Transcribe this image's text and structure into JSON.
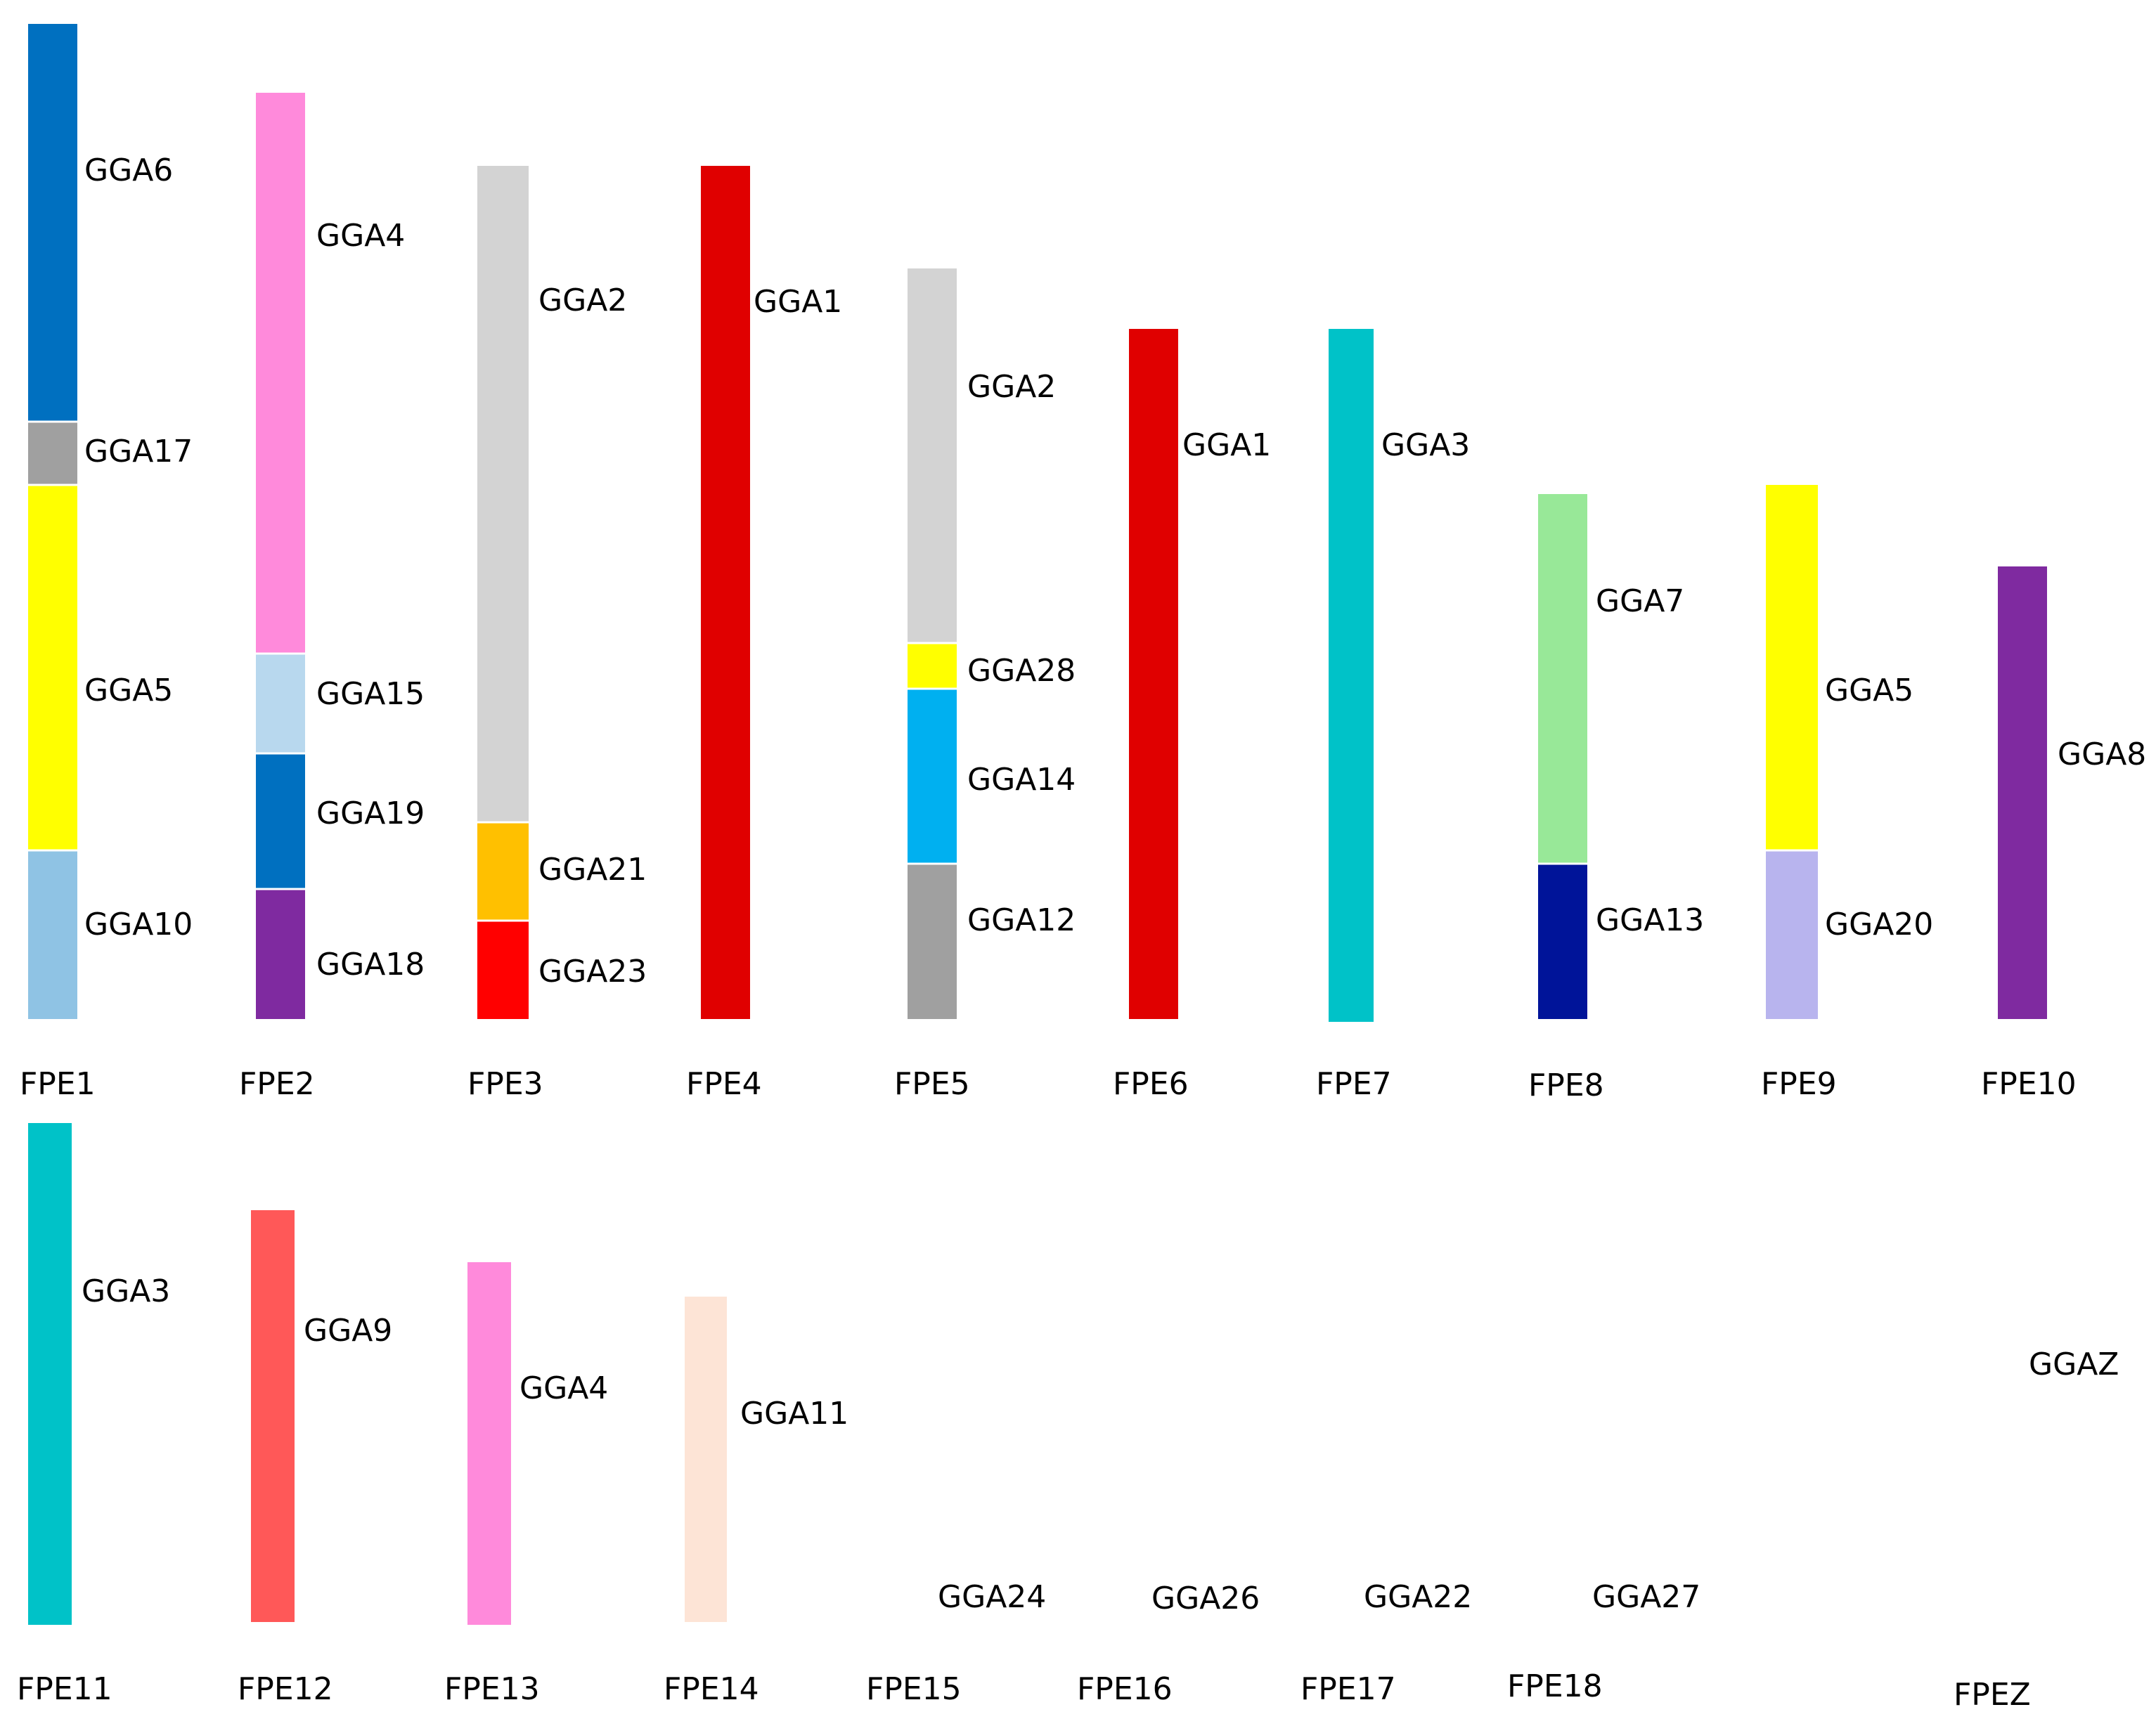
{
  "title": "",
  "chromosomes": [
    {
      "name": "FPE1",
      "segments": [
        {
          "label": "GGA6",
          "color": "#0070C0"
        },
        {
          "label": "GGA17",
          "color": "#A0A0A0"
        },
        {
          "label": "GGA5",
          "color": "#FFFF00"
        },
        {
          "label": "GGA10",
          "color": "#8FC3E4"
        }
      ]
    },
    {
      "name": "FPE2",
      "segments": [
        {
          "label": "GGA4",
          "color": "#FF8ADB"
        },
        {
          "label": "GGA15",
          "color": "#B8D8EE"
        },
        {
          "label": "GGA19",
          "color": "#0070C0"
        },
        {
          "label": "GGA18",
          "color": "#7F2AA0"
        }
      ]
    },
    {
      "name": "FPE3",
      "segments": [
        {
          "label": "GGA2",
          "color": "#D3D3D3"
        },
        {
          "label": "GGA21",
          "color": "#FFC000"
        },
        {
          "label": "GGA23",
          "color": "#FF0000"
        }
      ]
    },
    {
      "name": "FPE4",
      "segments": [
        {
          "label": "GGA1",
          "color": "#E00000"
        }
      ]
    },
    {
      "name": "FPE5",
      "segments": [
        {
          "label": "GGA2",
          "color": "#D3D3D3"
        },
        {
          "label": "GGA28",
          "color": "#FFFF00"
        },
        {
          "label": "GGA14",
          "color": "#00B0F0"
        },
        {
          "label": "GGA12",
          "color": "#A0A0A0"
        }
      ]
    },
    {
      "name": "FPE6",
      "segments": [
        {
          "label": "GGA1",
          "color": "#E00000"
        }
      ]
    },
    {
      "name": "FPE7",
      "segments": [
        {
          "label": "GGA3",
          "color": "#00C2C8"
        }
      ]
    },
    {
      "name": "FPE8",
      "segments": [
        {
          "label": "GGA7",
          "color": "#98E898"
        },
        {
          "label": "GGA13",
          "color": "#001499"
        }
      ]
    },
    {
      "name": "FPE9",
      "segments": [
        {
          "label": "GGA5",
          "color": "#FFFF00"
        },
        {
          "label": "GGA20",
          "color": "#B8B4EE"
        }
      ]
    },
    {
      "name": "FPE10",
      "segments": [
        {
          "label": "GGA8",
          "color": "#7F2AA0"
        }
      ]
    },
    {
      "name": "FPE11",
      "segments": [
        {
          "label": "GGA3",
          "color": "#00C2C8"
        }
      ]
    },
    {
      "name": "FPE12",
      "segments": [
        {
          "label": "GGA9",
          "color": "#FF5858"
        }
      ]
    },
    {
      "name": "FPE13",
      "segments": [
        {
          "label": "GGA4",
          "color": "#FF8ADB"
        }
      ]
    },
    {
      "name": "FPE14",
      "segments": [
        {
          "label": "GGA11",
          "color": "#FDE4D6"
        }
      ]
    },
    {
      "name": "FPE15",
      "segments": [
        {
          "label": "GGA24",
          "color": ""
        }
      ]
    },
    {
      "name": "FPE16",
      "segments": [
        {
          "label": "GGA26",
          "color": ""
        }
      ]
    },
    {
      "name": "FPE17",
      "segments": [
        {
          "label": "GGA22",
          "color": ""
        }
      ]
    },
    {
      "name": "FPE18",
      "segments": [
        {
          "label": "GGA27",
          "color": ""
        }
      ]
    },
    {
      "name": "FPEZ",
      "segments": [
        {
          "label": "GGAZ",
          "color": ""
        }
      ]
    }
  ]
}
